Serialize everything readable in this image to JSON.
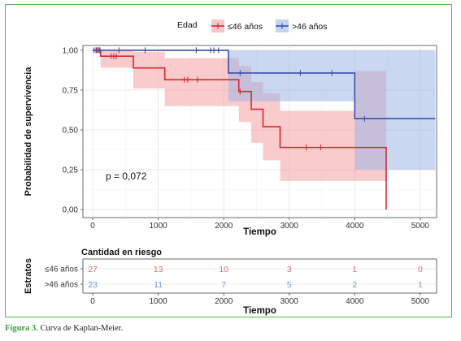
{
  "chart_data": {
    "type": "line",
    "subtype": "kaplan-meier",
    "xlabel": "Tiempo",
    "ylabel": "Probabilidad de supervivencia",
    "xlim": [
      -150,
      5250
    ],
    "ylim": [
      -0.05,
      1.03
    ],
    "xticks": [
      "0",
      "1000",
      "2000",
      "3000",
      "4000",
      "5000"
    ],
    "yticks": [
      "0,00",
      "0,25",
      "0,50",
      "0,75",
      "1,00"
    ],
    "grid": true,
    "legend": {
      "title": "Edad",
      "placement": "top"
    },
    "pvalue": "p = 0,072",
    "series": [
      {
        "name": "≤46 años",
        "color": "#d7282f",
        "fill": "#f4a0a3",
        "steps": [
          [
            0,
            1.0
          ],
          [
            120,
            0.963
          ],
          [
            520,
            0.963
          ],
          [
            620,
            0.889
          ],
          [
            1080,
            0.889
          ],
          [
            1100,
            0.815
          ],
          [
            2200,
            0.815
          ],
          [
            2230,
            0.741
          ],
          [
            2360,
            0.741
          ],
          [
            2420,
            0.63
          ],
          [
            2560,
            0.63
          ],
          [
            2600,
            0.52
          ],
          [
            2830,
            0.52
          ],
          [
            2860,
            0.39
          ],
          [
            4470,
            0.39
          ],
          [
            4480,
            0.0
          ]
        ],
        "lower": [
          [
            0,
            1.0
          ],
          [
            120,
            0.89
          ],
          [
            620,
            0.76
          ],
          [
            1100,
            0.65
          ],
          [
            2230,
            0.55
          ],
          [
            2420,
            0.42
          ],
          [
            2600,
            0.31
          ],
          [
            2860,
            0.18
          ],
          [
            4480,
            0.18
          ]
        ],
        "upper": [
          [
            0,
            1.0
          ],
          [
            120,
            1.0
          ],
          [
            620,
            0.99
          ],
          [
            1100,
            0.95
          ],
          [
            2230,
            0.9
          ],
          [
            2420,
            0.8
          ],
          [
            2600,
            0.73
          ],
          [
            2860,
            0.62
          ],
          [
            4000,
            0.87
          ],
          [
            4480,
            0.87
          ]
        ],
        "censors": [
          [
            60,
            1.0
          ],
          [
            80,
            1.0
          ],
          [
            100,
            1.0
          ],
          [
            280,
            0.963
          ],
          [
            320,
            0.963
          ],
          [
            360,
            0.963
          ],
          [
            1400,
            0.815
          ],
          [
            1450,
            0.815
          ],
          [
            1600,
            0.815
          ],
          [
            2250,
            0.741
          ],
          [
            3260,
            0.39
          ],
          [
            3480,
            0.39
          ]
        ]
      },
      {
        "name": ">46 años",
        "color": "#3a4fa8",
        "fill": "#9fb6e6",
        "steps": [
          [
            0,
            1.0
          ],
          [
            2050,
            1.0
          ],
          [
            2070,
            0.857
          ],
          [
            3990,
            0.857
          ],
          [
            4000,
            0.571
          ],
          [
            5230,
            0.571
          ]
        ],
        "lower": [
          [
            0,
            1.0
          ],
          [
            2070,
            0.68
          ],
          [
            4000,
            0.25
          ],
          [
            5230,
            0.25
          ]
        ],
        "upper": [
          [
            0,
            1.0
          ],
          [
            5230,
            1.0
          ]
        ],
        "censors": [
          [
            20,
            1.0
          ],
          [
            50,
            1.0
          ],
          [
            80,
            1.0
          ],
          [
            110,
            1.0
          ],
          [
            400,
            1.0
          ],
          [
            800,
            1.0
          ],
          [
            1580,
            1.0
          ],
          [
            1800,
            1.0
          ],
          [
            1850,
            1.0
          ],
          [
            1920,
            1.0
          ],
          [
            2250,
            0.857
          ],
          [
            3170,
            0.857
          ],
          [
            3650,
            0.857
          ],
          [
            4150,
            0.571
          ]
        ]
      }
    ],
    "risk_table": {
      "title": "Cantidad en riesgo",
      "ylabel": "Estratos",
      "xlabel": "Tiempo",
      "times": [
        0,
        1000,
        2000,
        3000,
        4000,
        5000
      ],
      "rows": [
        {
          "label": "≤46 años",
          "color": "#d9707a",
          "counts": [
            "27",
            "13",
            "10",
            "3",
            "1",
            "0"
          ]
        },
        {
          "label": ">46 años",
          "color": "#6f98d8",
          "counts": [
            "23",
            "11",
            "7",
            "5",
            "2",
            "1"
          ]
        }
      ]
    }
  },
  "caption": {
    "fig": "Figura 3.",
    "text": " Curva de Kaplan-Meier."
  }
}
